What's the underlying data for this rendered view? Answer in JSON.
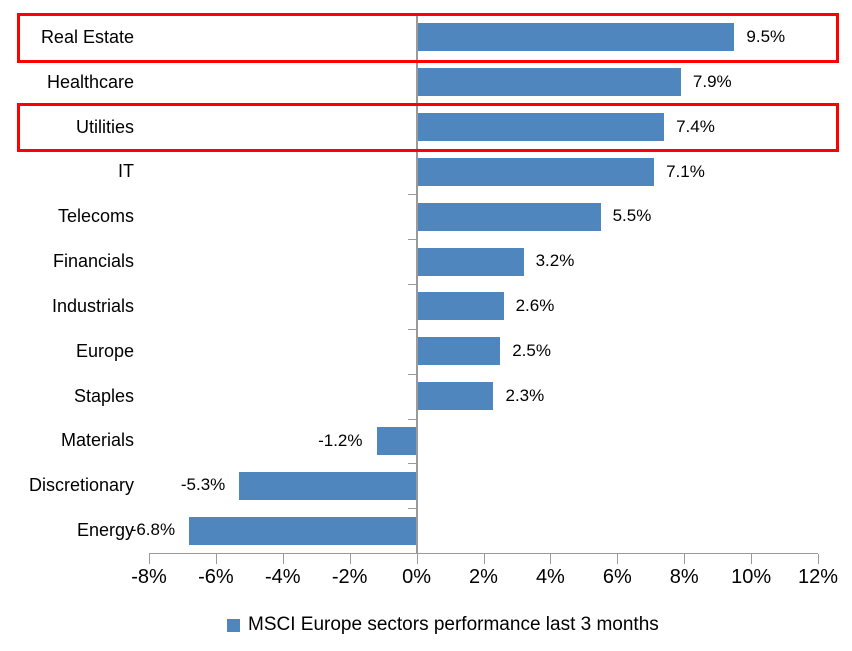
{
  "chart_data": {
    "type": "bar",
    "orientation": "horizontal",
    "title": "",
    "categories": [
      "Real Estate",
      "Healthcare",
      "Utilities",
      "IT",
      "Telecoms",
      "Financials",
      "Industrials",
      "Europe",
      "Staples",
      "Materials",
      "Discretionary",
      "Energy"
    ],
    "values": [
      9.5,
      7.9,
      7.4,
      7.1,
      5.5,
      3.2,
      2.6,
      2.5,
      2.3,
      -1.2,
      -5.3,
      -6.8
    ],
    "value_labels": [
      "9.5%",
      "7.9%",
      "7.4%",
      "7.1%",
      "5.5%",
      "3.2%",
      "2.6%",
      "2.5%",
      "2.3%",
      "-1.2%",
      "-5.3%",
      "-6.8%"
    ],
    "xlim": [
      -8,
      12
    ],
    "x_ticks": [
      {
        "value": -8,
        "label": "-8%"
      },
      {
        "value": -6,
        "label": "-6%"
      },
      {
        "value": -4,
        "label": "-4%"
      },
      {
        "value": -2,
        "label": "-2%"
      },
      {
        "value": 0,
        "label": "0%"
      },
      {
        "value": 2,
        "label": "2%"
      },
      {
        "value": 4,
        "label": "4%"
      },
      {
        "value": 6,
        "label": "6%"
      },
      {
        "value": 8,
        "label": "8%"
      },
      {
        "value": 10,
        "label": "10%"
      },
      {
        "value": 12,
        "label": "12%"
      }
    ],
    "grid": false,
    "ylabel": "",
    "xlabel": "",
    "legend": {
      "label": "MSCI Europe sectors performance last 3 months",
      "position": "bottom"
    },
    "colors": {
      "bar": "#4e86bd",
      "axis": "#9a9a9a",
      "text": "#000000",
      "highlight": "#ff0000",
      "background": "#ffffff"
    },
    "highlight_boxes": {
      "rows": [
        0,
        2
      ]
    }
  }
}
